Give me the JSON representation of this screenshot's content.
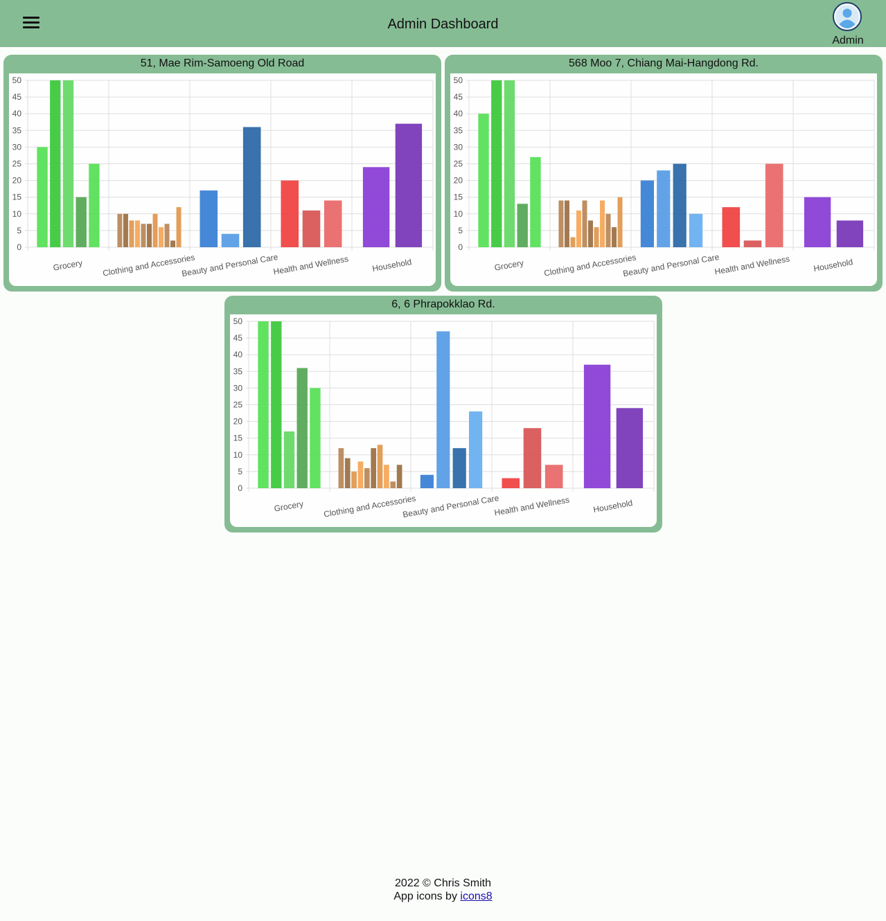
{
  "header": {
    "title": "Admin Dashboard",
    "user_label": "Admin"
  },
  "footer": {
    "copyright": "2022 © Chris Smith",
    "icons_prefix": "App icons by",
    "icons_link": "icons8"
  },
  "colors": {
    "header_bg": "#86bc94",
    "Grocery": [
      "#58e058",
      "#3ec93e",
      "#66d966",
      "#57a857"
    ],
    "Clothing and Accessories": [
      "#b9895a",
      "#9e7247",
      "#e09a52",
      "#f5a85a"
    ],
    "Beauty and Personal Care": [
      "#3b82d6",
      "#5a9ee6",
      "#2e6aa8",
      "#6ab0f0"
    ],
    "Health and Wellness": [
      "#f04444",
      "#d95757",
      "#ea6a6a",
      "#b83a3a"
    ],
    "Household": [
      "#8b3fd6",
      "#7a3ab8",
      "#9c5ae0",
      "#a066db"
    ]
  },
  "chart_data": [
    {
      "type": "bar",
      "title": "51, Mae Rim-Samoeng Old Road",
      "categories": [
        "Grocery",
        "Clothing and Accessories",
        "Beauty and Personal Care",
        "Health and Wellness",
        "Household"
      ],
      "ylim": [
        0,
        50
      ],
      "yticks": [
        0,
        5,
        10,
        15,
        20,
        25,
        30,
        35,
        40,
        45,
        50
      ],
      "groups": [
        [
          30,
          50,
          50,
          15,
          25
        ],
        [
          10,
          10,
          8,
          8,
          7,
          7,
          10,
          6,
          7,
          2,
          12
        ],
        [
          17,
          4,
          36
        ],
        [
          20,
          11,
          14
        ],
        [
          24,
          37
        ]
      ]
    },
    {
      "type": "bar",
      "title": "568 Moo 7, Chiang Mai-Hangdong Rd.",
      "categories": [
        "Grocery",
        "Clothing and Accessories",
        "Beauty and Personal Care",
        "Health and Wellness",
        "Household"
      ],
      "ylim": [
        0,
        50
      ],
      "yticks": [
        0,
        5,
        10,
        15,
        20,
        25,
        30,
        35,
        40,
        45,
        50
      ],
      "groups": [
        [
          40,
          50,
          50,
          13,
          27
        ],
        [
          14,
          14,
          3,
          11,
          14,
          8,
          6,
          14,
          10,
          6,
          15
        ],
        [
          20,
          23,
          25,
          10
        ],
        [
          12,
          2,
          25
        ],
        [
          15,
          8
        ]
      ]
    },
    {
      "type": "bar",
      "title": "6, 6 Phrapokklao Rd.",
      "categories": [
        "Grocery",
        "Clothing and Accessories",
        "Beauty and Personal Care",
        "Health and Wellness",
        "Household"
      ],
      "ylim": [
        0,
        50
      ],
      "yticks": [
        0,
        5,
        10,
        15,
        20,
        25,
        30,
        35,
        40,
        45,
        50
      ],
      "groups": [
        [
          50,
          50,
          17,
          36,
          30
        ],
        [
          12,
          9,
          5,
          8,
          6,
          12,
          13,
          7,
          2,
          7
        ],
        [
          4,
          47,
          12,
          23
        ],
        [
          3,
          18,
          7
        ],
        [
          37,
          24
        ]
      ]
    }
  ]
}
